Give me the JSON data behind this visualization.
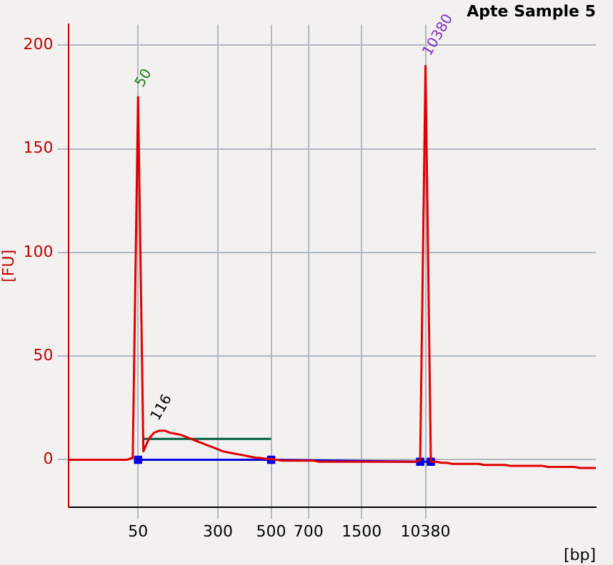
{
  "chart_data": {
    "type": "line",
    "title": "Apte Sample 5",
    "xlabel": "[bp]",
    "ylabel": "[FU]",
    "categories": [
      null,
      null,
      null,
      null,
      null,
      null,
      null,
      null,
      null,
      null,
      null,
      null,
      null,
      "50",
      null,
      null,
      null,
      null,
      null,
      null,
      null,
      null,
      null,
      null,
      null,
      null,
      null,
      null,
      "300",
      null,
      null,
      null,
      null,
      null,
      null,
      null,
      null,
      null,
      "500",
      null,
      null,
      null,
      null,
      null,
      null,
      "700",
      null,
      null,
      null,
      null,
      null,
      null,
      null,
      null,
      null,
      "1500",
      null,
      null,
      null,
      null,
      null,
      null,
      null,
      null,
      null,
      null,
      null,
      "10380",
      null,
      null,
      null,
      null,
      null,
      null,
      null,
      null,
      null,
      null,
      null,
      null,
      null,
      null,
      null,
      null,
      null,
      null,
      null,
      null,
      null,
      null,
      null,
      null,
      null,
      null,
      null,
      null,
      null,
      null,
      null,
      null
    ],
    "series": [
      {
        "color": "#e00000",
        "values": [
          0,
          0,
          0,
          0,
          0,
          0,
          0,
          0,
          0,
          0,
          0,
          0,
          1,
          175,
          4,
          10,
          13,
          14,
          14,
          13,
          12.5,
          12,
          11,
          10,
          9,
          8,
          7,
          6,
          5,
          4,
          3.5,
          3,
          2.5,
          2,
          1.5,
          1,
          0.8,
          0.5,
          0.3,
          0,
          -0.5,
          -0.5,
          -0.5,
          -0.5,
          -0.5,
          -0.5,
          -0.5,
          -1,
          -1,
          -1,
          -1,
          -1,
          -1,
          -1,
          -1,
          -1,
          -1,
          -1,
          -1,
          -1,
          -1,
          -1,
          -1,
          -1,
          -1,
          -1,
          0,
          190,
          -1,
          -1,
          -1.5,
          -1.5,
          -2,
          -2,
          -2,
          -2,
          -2,
          -2,
          -2.5,
          -2.5,
          -2.5,
          -2.5,
          -2.5,
          -3,
          -3,
          -3,
          -3,
          -3,
          -3,
          -3,
          -3.5,
          -3.5,
          -3.5,
          -3.5,
          -3.5,
          -3.5,
          -4,
          -4,
          -4,
          -4
        ]
      },
      {
        "color": "#0000e0",
        "marker": "square",
        "values": [
          null,
          null,
          null,
          null,
          null,
          null,
          null,
          null,
          null,
          null,
          null,
          null,
          null,
          0,
          null,
          null,
          null,
          null,
          null,
          null,
          null,
          null,
          null,
          null,
          null,
          null,
          null,
          null,
          null,
          null,
          null,
          null,
          null,
          null,
          null,
          null,
          null,
          null,
          0,
          null,
          null,
          null,
          null,
          null,
          null,
          null,
          null,
          null,
          null,
          null,
          null,
          null,
          null,
          null,
          null,
          null,
          null,
          null,
          null,
          null,
          null,
          null,
          null,
          null,
          null,
          null,
          -1,
          null,
          -1,
          null,
          null,
          null,
          null,
          null,
          null,
          null,
          null,
          null,
          null,
          null,
          null,
          null,
          null,
          null,
          null,
          null,
          null,
          null,
          null,
          null,
          null,
          null,
          null,
          null,
          null,
          null,
          null,
          null,
          null,
          null
        ]
      },
      {
        "color": "#006040",
        "marker": "none",
        "values": [
          null,
          null,
          null,
          null,
          null,
          null,
          null,
          null,
          null,
          null,
          null,
          null,
          null,
          null,
          10,
          null,
          null,
          null,
          null,
          null,
          null,
          null,
          null,
          null,
          null,
          null,
          null,
          null,
          null,
          null,
          null,
          null,
          null,
          null,
          null,
          null,
          null,
          null,
          10,
          null,
          null,
          null,
          null,
          null,
          null,
          null,
          null,
          null,
          null,
          null,
          null,
          null,
          null,
          null,
          null,
          null,
          null,
          null,
          null,
          null,
          null,
          null,
          null,
          null,
          null,
          null,
          null,
          null,
          null,
          null,
          null,
          null,
          null,
          null,
          null,
          null,
          null,
          null,
          null,
          null,
          null,
          null,
          null,
          null,
          null,
          null,
          null,
          null,
          null,
          null,
          null,
          null,
          null,
          null,
          null,
          null,
          null,
          null,
          null,
          null
        ]
      }
    ],
    "annotations": [
      {
        "text": "50",
        "x": "50",
        "y": 175
      },
      {
        "text": "116",
        "y": 14
      },
      {
        "text": "10380",
        "x": "10380",
        "y": 190
      }
    ],
    "ylim": [
      -23,
      210
    ],
    "yticks": [
      0,
      50,
      100,
      150,
      200
    ],
    "grid": true,
    "legend": false
  }
}
